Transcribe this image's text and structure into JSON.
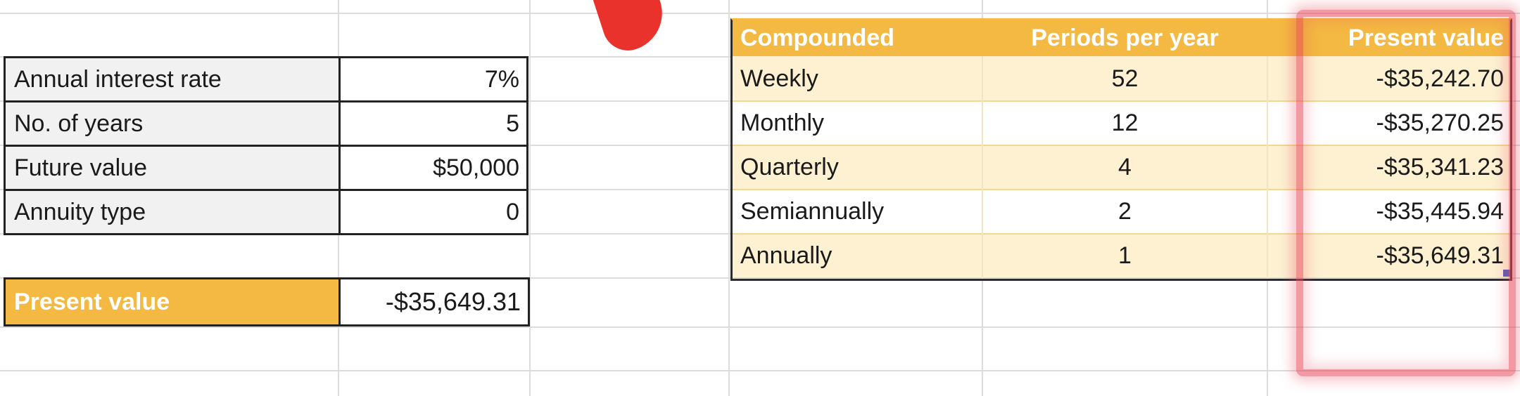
{
  "inputs": {
    "rows": [
      {
        "label": "Annual interest rate",
        "value": "7%"
      },
      {
        "label": "No. of years",
        "value": "5"
      },
      {
        "label": "Future value",
        "value": "$50,000"
      },
      {
        "label": "Annuity type",
        "value": "0"
      }
    ],
    "present_value": {
      "label": "Present value",
      "value": "-$35,649.31"
    }
  },
  "table": {
    "headers": [
      "Compounded",
      "Periods per year",
      "Present value"
    ],
    "rows": [
      {
        "compounded": "Weekly",
        "periods": "52",
        "pv": "-$35,242.70"
      },
      {
        "compounded": "Monthly",
        "periods": "12",
        "pv": "-$35,270.25"
      },
      {
        "compounded": "Quarterly",
        "periods": "4",
        "pv": "-$35,341.23"
      },
      {
        "compounded": "Semiannually",
        "periods": "2",
        "pv": "-$35,445.94"
      },
      {
        "compounded": "Annually",
        "periods": "1",
        "pv": "-$35,649.31"
      }
    ]
  },
  "colors": {
    "accent": "#f4b942",
    "band": "#fdf1d2",
    "highlight": "#e8465a",
    "annotation": "#e8322b"
  }
}
